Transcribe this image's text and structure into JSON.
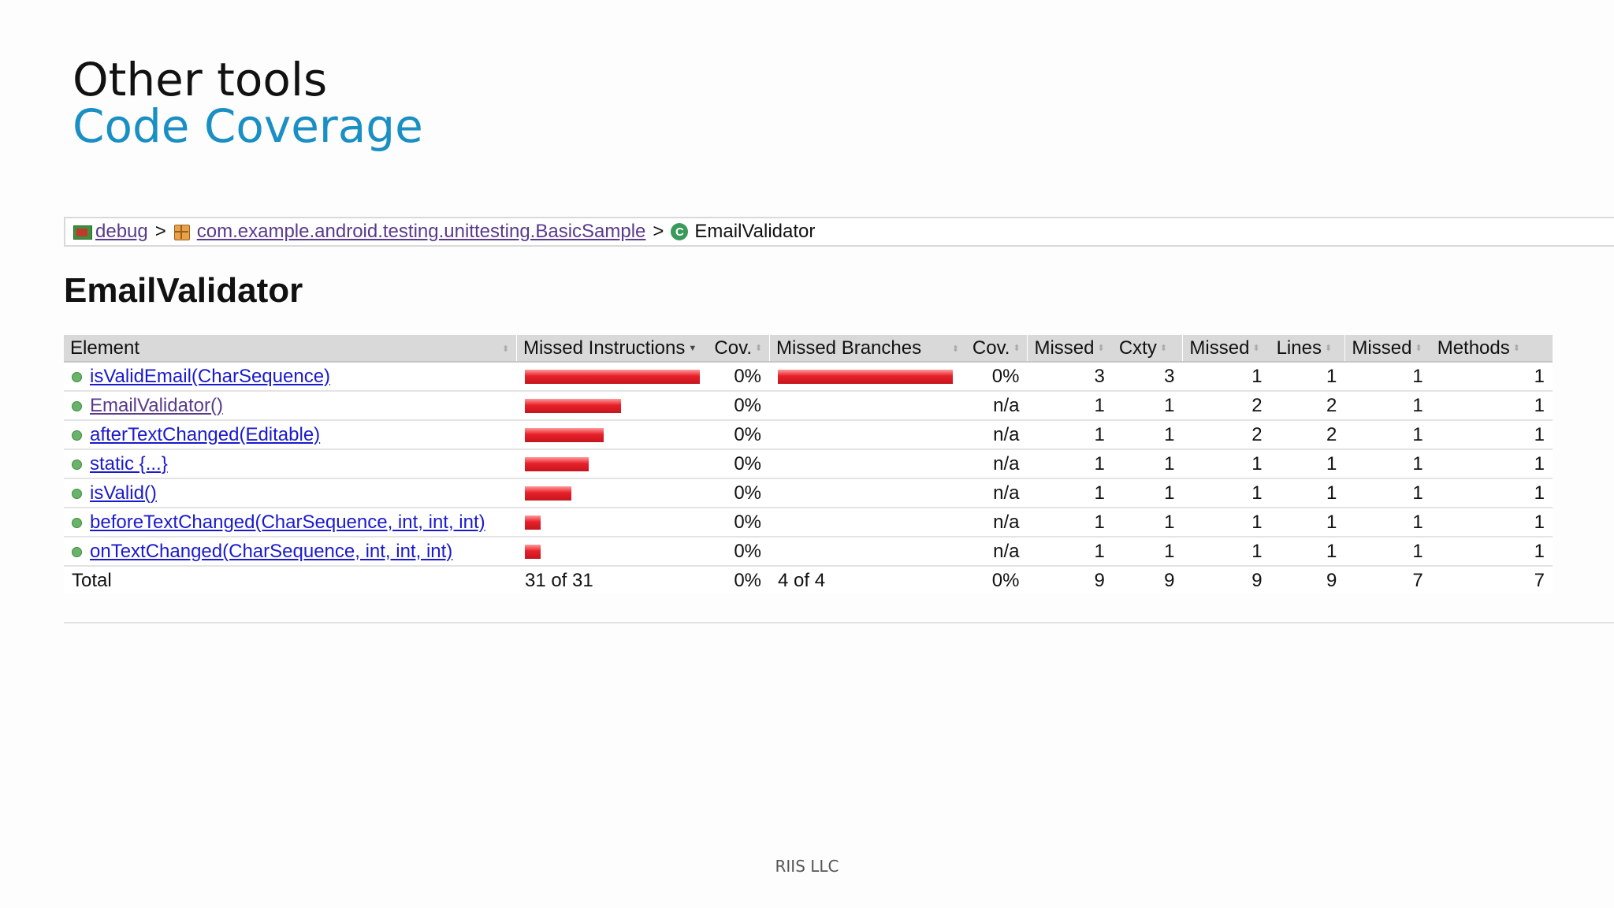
{
  "slide": {
    "title": "Other tools",
    "subtitle": "Code Coverage",
    "footer": "RIIS LLC"
  },
  "breadcrumb": {
    "items": [
      {
        "label": "debug",
        "icon": "report-folder-icon",
        "link": true
      },
      {
        "label": "com.example.android.testing.unittesting.BasicSample",
        "icon": "package-icon",
        "link": true
      },
      {
        "label": "EmailValidator",
        "icon": "class-icon",
        "link": false
      }
    ],
    "separator": ">"
  },
  "report": {
    "heading": "EmailValidator",
    "columns": [
      "Element",
      "Missed Instructions",
      "Cov.",
      "Missed Branches",
      "Cov.",
      "Missed",
      "Cxty",
      "Missed",
      "Lines",
      "Missed",
      "Methods"
    ],
    "rows": [
      {
        "element": "isValidEmail(CharSequence)",
        "instr_fraction": 1.0,
        "instr_cov": "0%",
        "branch_fraction": 1.0,
        "branch_cov": "0%",
        "missed_cxty": "3",
        "cxty": "3",
        "missed_lines": "1",
        "lines": "1",
        "missed_methods": "1",
        "methods": "1",
        "visited": false
      },
      {
        "element": "EmailValidator()",
        "instr_fraction": 0.548,
        "instr_cov": "0%",
        "branch_fraction": 0,
        "branch_cov": "n/a",
        "missed_cxty": "1",
        "cxty": "1",
        "missed_lines": "2",
        "lines": "2",
        "missed_methods": "1",
        "methods": "1",
        "visited": true
      },
      {
        "element": "afterTextChanged(Editable)",
        "instr_fraction": 0.452,
        "instr_cov": "0%",
        "branch_fraction": 0,
        "branch_cov": "n/a",
        "missed_cxty": "1",
        "cxty": "1",
        "missed_lines": "2",
        "lines": "2",
        "missed_methods": "1",
        "methods": "1",
        "visited": false
      },
      {
        "element": "static {...}",
        "instr_fraction": 0.364,
        "instr_cov": "0%",
        "branch_fraction": 0,
        "branch_cov": "n/a",
        "missed_cxty": "1",
        "cxty": "1",
        "missed_lines": "1",
        "lines": "1",
        "missed_methods": "1",
        "methods": "1",
        "visited": false
      },
      {
        "element": "isValid()",
        "instr_fraction": 0.268,
        "instr_cov": "0%",
        "branch_fraction": 0,
        "branch_cov": "n/a",
        "missed_cxty": "1",
        "cxty": "1",
        "missed_lines": "1",
        "lines": "1",
        "missed_methods": "1",
        "methods": "1",
        "visited": false
      },
      {
        "element": "beforeTextChanged(CharSequence, int, int, int)",
        "instr_fraction": 0.09,
        "instr_cov": "0%",
        "branch_fraction": 0,
        "branch_cov": "n/a",
        "missed_cxty": "1",
        "cxty": "1",
        "missed_lines": "1",
        "lines": "1",
        "missed_methods": "1",
        "methods": "1",
        "visited": false
      },
      {
        "element": "onTextChanged(CharSequence, int, int, int)",
        "instr_fraction": 0.09,
        "instr_cov": "0%",
        "branch_fraction": 0,
        "branch_cov": "n/a",
        "missed_cxty": "1",
        "cxty": "1",
        "missed_lines": "1",
        "lines": "1",
        "missed_methods": "1",
        "methods": "1",
        "visited": false
      }
    ],
    "total": {
      "label": "Total",
      "instr": "31 of 31",
      "instr_cov": "0%",
      "branch": "4 of 4",
      "branch_cov": "0%",
      "missed_cxty": "9",
      "cxty": "9",
      "missed_lines": "9",
      "lines": "9",
      "missed_methods": "7",
      "methods": "7"
    }
  },
  "colors": {
    "subtitle": "#1a8fc4",
    "bar_red": "#e8202a",
    "link": "#1a1acc",
    "visited_link": "#5a3a8a",
    "header_bg": "#d9d9d9"
  }
}
